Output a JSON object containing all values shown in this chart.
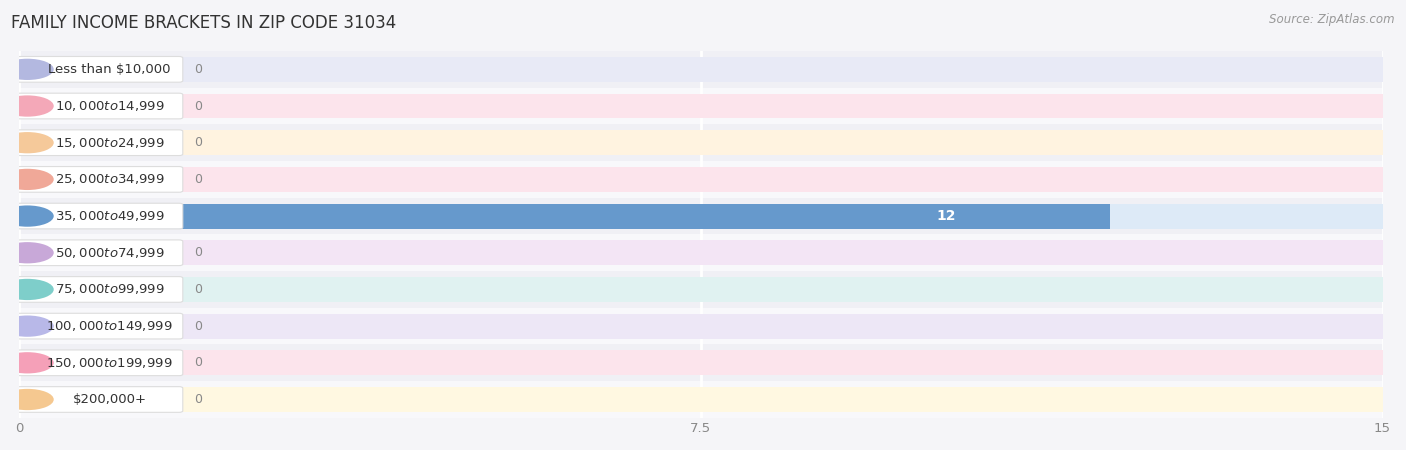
{
  "title": "FAMILY INCOME BRACKETS IN ZIP CODE 31034",
  "source": "Source: ZipAtlas.com",
  "categories": [
    "Less than $10,000",
    "$10,000 to $14,999",
    "$15,000 to $24,999",
    "$25,000 to $34,999",
    "$35,000 to $49,999",
    "$50,000 to $74,999",
    "$75,000 to $99,999",
    "$100,000 to $149,999",
    "$150,000 to $199,999",
    "$200,000+"
  ],
  "values": [
    0,
    0,
    0,
    0,
    12,
    0,
    0,
    0,
    0,
    0
  ],
  "bar_colors": [
    "#b3b8e0",
    "#f4a8b8",
    "#f5c99a",
    "#f0a898",
    "#6699cc",
    "#c8a8d8",
    "#7ececa",
    "#b8b8e8",
    "#f5a0b8",
    "#f5c890"
  ],
  "label_bg_colors": [
    "#e8eaf6",
    "#fce4ec",
    "#fff3e0",
    "#fce4ec",
    "#ddeaf7",
    "#f3e5f5",
    "#e0f2f1",
    "#ede7f6",
    "#fce4ec",
    "#fff8e1"
  ],
  "row_colors": [
    "#f0f0f5",
    "#f8f8fb"
  ],
  "xlim": [
    0,
    15
  ],
  "xticks": [
    0,
    7.5,
    15
  ],
  "background_color": "#f5f5f8",
  "bar_bg_color": "#e8e8ee",
  "grid_color": "#ffffff",
  "title_fontsize": 12,
  "label_fontsize": 9.5,
  "value_fontsize": 9
}
